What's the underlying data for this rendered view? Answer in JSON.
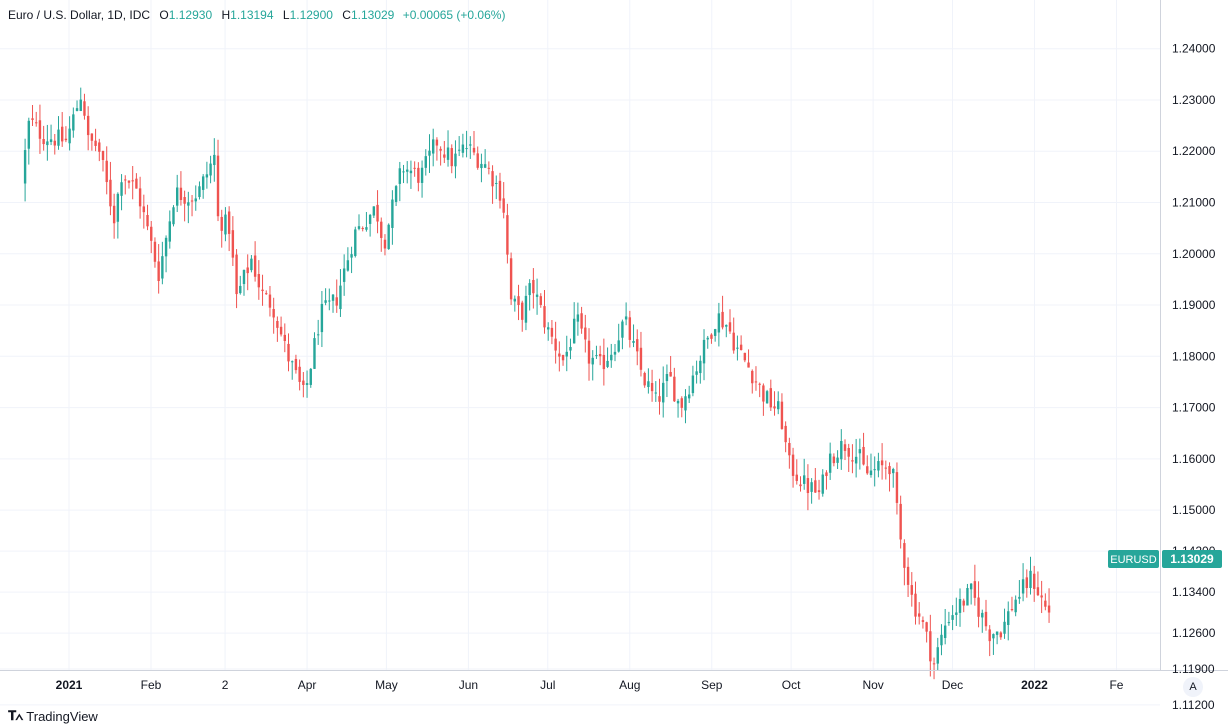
{
  "legend": {
    "title": "Euro / U.S. Dollar, 1D, IDC",
    "open_label": "O",
    "open": "1.12930",
    "high_label": "H",
    "high": "1.13194",
    "low_label": "L",
    "low": "1.12900",
    "close_label": "C",
    "close": "1.13029",
    "change": "+0.00065 (+0.06%)"
  },
  "price_tag": {
    "symbol": "EURUSD",
    "value": "1.13029"
  },
  "footer": {
    "logo": "TradingView"
  },
  "auto_scale_button": "A",
  "colors": {
    "up": "#26a69a",
    "down": "#ef5350",
    "grid": "#f0f3fa",
    "axis": "#131722"
  },
  "chart_data": {
    "type": "candlestick",
    "title": "Euro / U.S. Dollar, 1D, IDC",
    "xlabel": "",
    "ylabel": "",
    "ylim": [
      1.1075,
      1.2495
    ],
    "y_ticks": [
      "1.24000",
      "1.23000",
      "1.22000",
      "1.21000",
      "1.20000",
      "1.19000",
      "1.18000",
      "1.17000",
      "1.16000",
      "1.15000",
      "1.14200",
      "1.13400",
      "1.12600",
      "1.11900",
      "1.11200"
    ],
    "x_ticks": [
      {
        "label": "2021",
        "date": "2021-01-01",
        "bold": true
      },
      {
        "label": "Feb",
        "date": "2021-02-01",
        "bold": false
      },
      {
        "label": "2",
        "date": "2021-03-01",
        "bold": false
      },
      {
        "label": "Apr",
        "date": "2021-04-01",
        "bold": false
      },
      {
        "label": "May",
        "date": "2021-05-01",
        "bold": false
      },
      {
        "label": "Jun",
        "date": "2021-06-01",
        "bold": false
      },
      {
        "label": "Jul",
        "date": "2021-07-01",
        "bold": false
      },
      {
        "label": "Aug",
        "date": "2021-08-01",
        "bold": false
      },
      {
        "label": "Sep",
        "date": "2021-09-01",
        "bold": false
      },
      {
        "label": "Oct",
        "date": "2021-10-01",
        "bold": false
      },
      {
        "label": "Nov",
        "date": "2021-11-01",
        "bold": false
      },
      {
        "label": "Dec",
        "date": "2021-12-01",
        "bold": false
      },
      {
        "label": "2022",
        "date": "2022-01-01",
        "bold": true
      },
      {
        "label": "Fe",
        "date": "2022-02-01",
        "bold": false
      }
    ],
    "close_path": [
      [
        "2020-12-14",
        1.214
      ],
      [
        "2020-12-17",
        1.226
      ],
      [
        "2020-12-22",
        1.223
      ],
      [
        "2020-12-31",
        1.222
      ],
      [
        "2021-01-06",
        1.232
      ],
      [
        "2021-01-08",
        1.222
      ],
      [
        "2021-01-12",
        1.221
      ],
      [
        "2021-01-18",
        1.207
      ],
      [
        "2021-01-21",
        1.216
      ],
      [
        "2021-01-27",
        1.212
      ],
      [
        "2021-02-04",
        1.196
      ],
      [
        "2021-02-10",
        1.212
      ],
      [
        "2021-02-16",
        1.211
      ],
      [
        "2021-02-19",
        1.212
      ],
      [
        "2021-02-25",
        1.219
      ],
      [
        "2021-02-26",
        1.207
      ],
      [
        "2021-03-03",
        1.205
      ],
      [
        "2021-03-05",
        1.191
      ],
      [
        "2021-03-11",
        1.199
      ],
      [
        "2021-03-15",
        1.192
      ],
      [
        "2021-03-19",
        1.19
      ],
      [
        "2021-03-24",
        1.181
      ],
      [
        "2021-03-31",
        1.172
      ],
      [
        "2021-04-06",
        1.188
      ],
      [
        "2021-04-12",
        1.191
      ],
      [
        "2021-04-19",
        1.204
      ],
      [
        "2021-04-27",
        1.209
      ],
      [
        "2021-04-30",
        1.202
      ],
      [
        "2021-05-07",
        1.217
      ],
      [
        "2021-05-14",
        1.215
      ],
      [
        "2021-05-20",
        1.222
      ],
      [
        "2021-05-26",
        1.218
      ],
      [
        "2021-05-31",
        1.221
      ],
      [
        "2021-06-08",
        1.217
      ],
      [
        "2021-06-14",
        1.211
      ],
      [
        "2021-06-17",
        1.191
      ],
      [
        "2021-06-21",
        1.188
      ],
      [
        "2021-06-25",
        1.194
      ],
      [
        "2021-07-01",
        1.185
      ],
      [
        "2021-07-07",
        1.179
      ],
      [
        "2021-07-12",
        1.187
      ],
      [
        "2021-07-16",
        1.18
      ],
      [
        "2021-07-21",
        1.178
      ],
      [
        "2021-07-26",
        1.182
      ],
      [
        "2021-07-30",
        1.187
      ],
      [
        "2021-08-06",
        1.176
      ],
      [
        "2021-08-11",
        1.171
      ],
      [
        "2021-08-16",
        1.176
      ],
      [
        "2021-08-20",
        1.17
      ],
      [
        "2021-08-27",
        1.179
      ],
      [
        "2021-09-03",
        1.188
      ],
      [
        "2021-09-07",
        1.186
      ],
      [
        "2021-09-10",
        1.182
      ],
      [
        "2021-09-16",
        1.177
      ],
      [
        "2021-09-21",
        1.172
      ],
      [
        "2021-09-27",
        1.169
      ],
      [
        "2021-09-30",
        1.159
      ],
      [
        "2021-10-06",
        1.155
      ],
      [
        "2021-10-12",
        1.153
      ],
      [
        "2021-10-15",
        1.16
      ],
      [
        "2021-10-21",
        1.163
      ],
      [
        "2021-10-27",
        1.16
      ],
      [
        "2021-10-29",
        1.157
      ],
      [
        "2021-11-03",
        1.158
      ],
      [
        "2021-11-08",
        1.159
      ],
      [
        "2021-11-11",
        1.145
      ],
      [
        "2021-11-16",
        1.132
      ],
      [
        "2021-11-19",
        1.129
      ],
      [
        "2021-11-24",
        1.12
      ],
      [
        "2021-11-29",
        1.129
      ],
      [
        "2021-12-03",
        1.131
      ],
      [
        "2021-12-08",
        1.134
      ],
      [
        "2021-12-15",
        1.126
      ],
      [
        "2021-12-20",
        1.127
      ],
      [
        "2021-12-24",
        1.132
      ],
      [
        "2021-12-31",
        1.137
      ],
      [
        "2022-01-05",
        1.131
      ],
      [
        "2022-01-07",
        1.13
      ]
    ]
  }
}
